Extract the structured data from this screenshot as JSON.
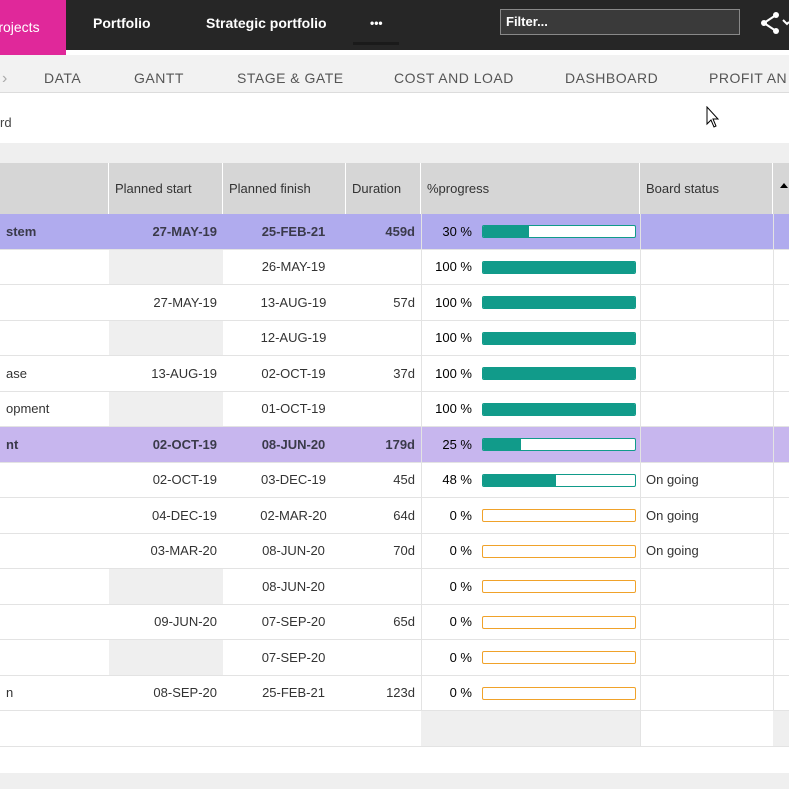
{
  "topbar": {
    "projects_tab": "Projects",
    "nav": [
      "Portfolio",
      "Strategic portfolio",
      "•••"
    ],
    "filter_placeholder": "Filter...",
    "share_icon": "share-icon"
  },
  "subnav": {
    "items": [
      "DATA",
      "GANTT",
      "STAGE & GATE",
      "COST AND LOAD",
      "DASHBOARD",
      "PROFIT AN"
    ]
  },
  "breadcrumb": "rd",
  "table": {
    "headers": [
      "Planned start",
      "Planned finish",
      "Duration",
      "%progress",
      "Board status"
    ],
    "rows": [
      {
        "name": "stem",
        "start": "27-MAY-19",
        "finish": "25-FEB-21",
        "duration": "459d",
        "progress_label": "30 %",
        "progress": 30,
        "status": "",
        "group": "g1"
      },
      {
        "name": "",
        "start": "",
        "finish": "26-MAY-19",
        "duration": "",
        "progress_label": "100 %",
        "progress": 100,
        "status": "",
        "group": ""
      },
      {
        "name": "",
        "start": "27-MAY-19",
        "finish": "13-AUG-19",
        "duration": "57d",
        "progress_label": "100 %",
        "progress": 100,
        "status": "",
        "group": ""
      },
      {
        "name": "",
        "start": "",
        "finish": "12-AUG-19",
        "duration": "",
        "progress_label": "100 %",
        "progress": 100,
        "status": "",
        "group": ""
      },
      {
        "name": "ase",
        "start": "13-AUG-19",
        "finish": "02-OCT-19",
        "duration": "37d",
        "progress_label": "100 %",
        "progress": 100,
        "status": "",
        "group": ""
      },
      {
        "name": "opment",
        "start": "",
        "finish": "01-OCT-19",
        "duration": "",
        "progress_label": "100 %",
        "progress": 100,
        "status": "",
        "group": ""
      },
      {
        "name": "nt",
        "start": "02-OCT-19",
        "finish": "08-JUN-20",
        "duration": "179d",
        "progress_label": "25 %",
        "progress": 25,
        "status": "",
        "group": "g2"
      },
      {
        "name": "",
        "start": "02-OCT-19",
        "finish": "03-DEC-19",
        "duration": "45d",
        "progress_label": "48 %",
        "progress": 48,
        "status": "On going",
        "group": ""
      },
      {
        "name": "",
        "start": "04-DEC-19",
        "finish": "02-MAR-20",
        "duration": "64d",
        "progress_label": "0 %",
        "progress": 0,
        "status": "On going",
        "group": ""
      },
      {
        "name": "",
        "start": "03-MAR-20",
        "finish": "08-JUN-20",
        "duration": "70d",
        "progress_label": "0 %",
        "progress": 0,
        "status": "On going",
        "group": ""
      },
      {
        "name": "",
        "start": "",
        "finish": "08-JUN-20",
        "duration": "",
        "progress_label": "0 %",
        "progress": 0,
        "status": "",
        "group": ""
      },
      {
        "name": "",
        "start": "09-JUN-20",
        "finish": "07-SEP-20",
        "duration": "65d",
        "progress_label": "0 %",
        "progress": 0,
        "status": "",
        "group": ""
      },
      {
        "name": "",
        "start": "",
        "finish": "07-SEP-20",
        "duration": "",
        "progress_label": "0 %",
        "progress": 0,
        "status": "",
        "group": ""
      },
      {
        "name": "n",
        "start": "08-SEP-20",
        "finish": "25-FEB-21",
        "duration": "123d",
        "progress_label": "0 %",
        "progress": 0,
        "status": "",
        "group": ""
      }
    ]
  },
  "colors": {
    "brand_pink": "#e0289a",
    "progress_teal": "#119b8a",
    "progress_empty_orange": "#f0a22a",
    "group_row_1": "#b0abee",
    "group_row_2": "#c7b6ee"
  }
}
